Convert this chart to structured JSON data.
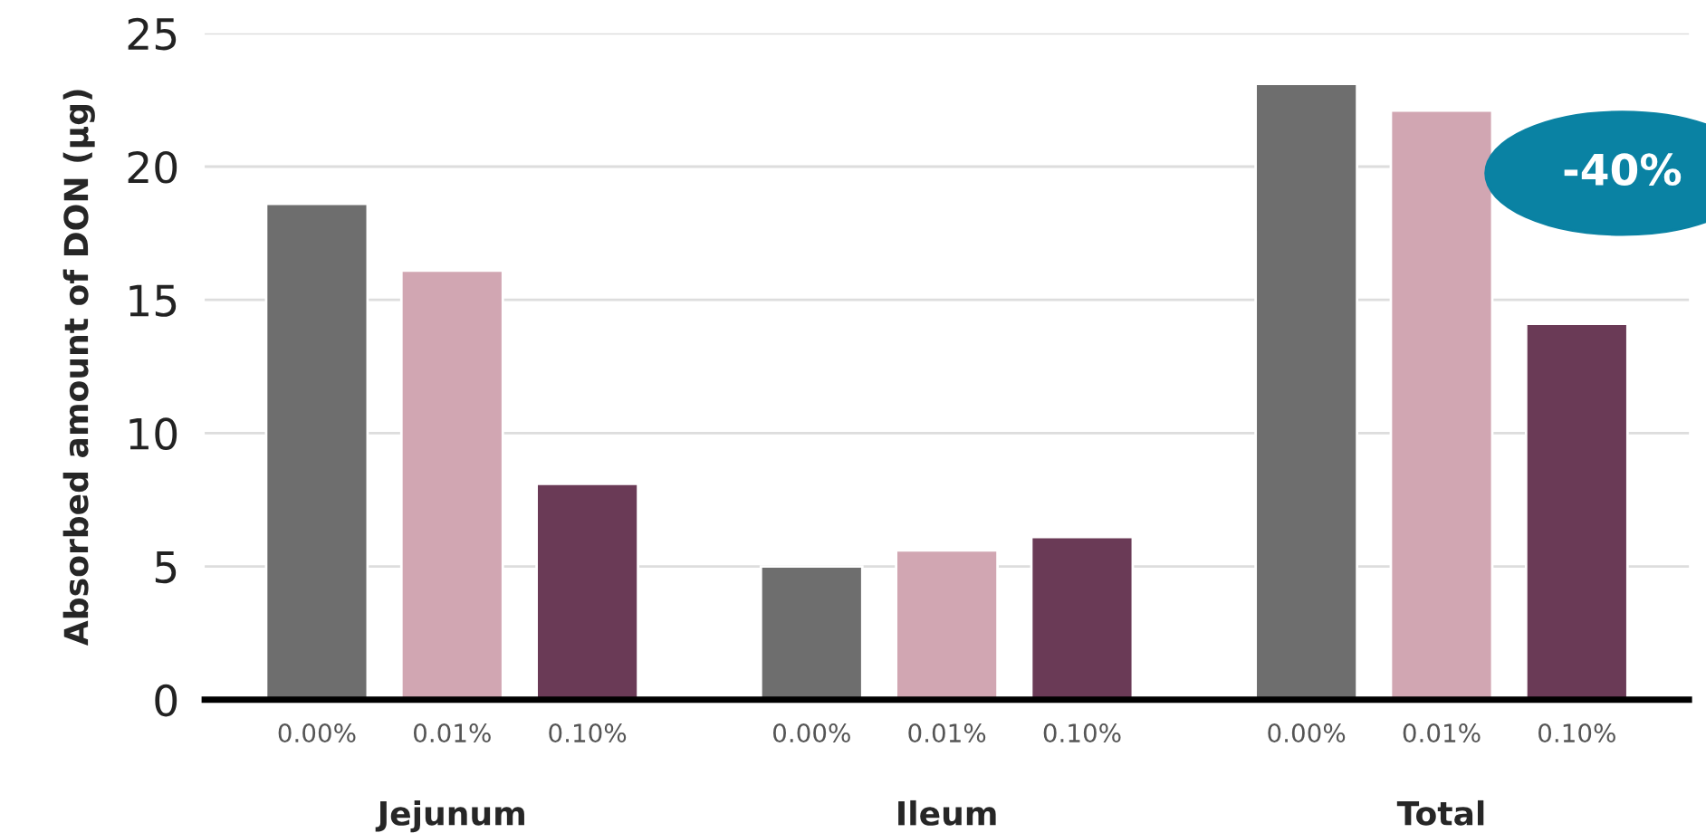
{
  "chart_data": {
    "type": "bar",
    "ylabel": "Absorbed amount of DON (µg)",
    "categories": [
      "Jejunum",
      "Ileum",
      "Total"
    ],
    "series": [
      {
        "name": "0.00%",
        "color": "#6e6e6e",
        "values": [
          18.6,
          5.0,
          23.1
        ]
      },
      {
        "name": "0.01%",
        "color": "#d1a6b2",
        "values": [
          16.1,
          5.6,
          22.1
        ]
      },
      {
        "name": "0.10%",
        "color": "#6a3a56",
        "values": [
          8.1,
          6.1,
          14.1
        ]
      }
    ],
    "ylim": [
      0,
      25
    ],
    "yticks": [
      0,
      5,
      10,
      15,
      20,
      25
    ],
    "grid": "y",
    "legend": false,
    "annotations": [
      "-40%"
    ]
  }
}
